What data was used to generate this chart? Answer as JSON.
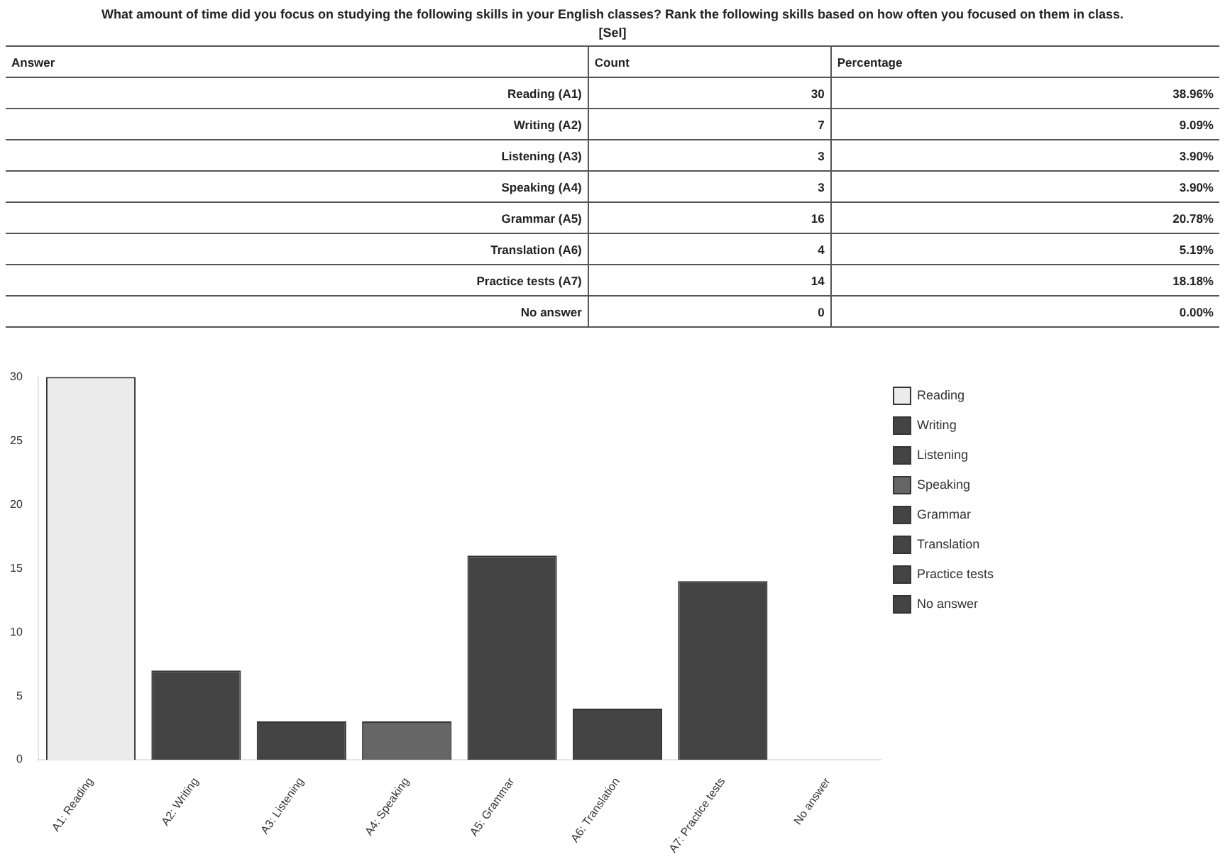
{
  "chart_data": {
    "type": "bar",
    "title": "What amount of time did you focus on studying the following skills in your English classes? Rank the following skills based on how often you focused on them in class.",
    "subtitle": "[Sel]",
    "categories": [
      "A1: Reading",
      "A2: Writing",
      "A3: Listening",
      "A4: Speaking",
      "A5: Grammar",
      "A6: Translation",
      "A7: Practice tests",
      "No answer"
    ],
    "series": [
      {
        "name": "Reading",
        "color": "#ebebeb",
        "values": [
          30,
          null,
          null,
          null,
          null,
          null,
          null,
          null
        ]
      },
      {
        "name": "Writing",
        "color": "#444444",
        "values": [
          null,
          7,
          null,
          null,
          null,
          null,
          null,
          null
        ]
      },
      {
        "name": "Listening",
        "color": "#444444",
        "values": [
          null,
          null,
          3,
          null,
          null,
          null,
          null,
          null
        ]
      },
      {
        "name": "Speaking",
        "color": "#666666",
        "values": [
          null,
          null,
          null,
          3,
          null,
          null,
          null,
          null
        ]
      },
      {
        "name": "Grammar",
        "color": "#444444",
        "values": [
          null,
          null,
          null,
          null,
          16,
          null,
          null,
          null
        ]
      },
      {
        "name": "Translation",
        "color": "#444444",
        "values": [
          null,
          null,
          null,
          null,
          null,
          4,
          null,
          null
        ]
      },
      {
        "name": "Practice tests",
        "color": "#444444",
        "values": [
          null,
          null,
          null,
          null,
          null,
          null,
          14,
          null
        ]
      },
      {
        "name": "No answer",
        "color": "#444444",
        "values": [
          null,
          null,
          null,
          null,
          null,
          null,
          null,
          0
        ]
      }
    ],
    "ylim": [
      0,
      30
    ],
    "yticks": [
      0,
      5,
      10,
      15,
      20,
      25,
      30
    ],
    "legend": "top right",
    "annotations": [
      "Answer",
      "Count",
      "Percentage",
      "Reading (A1)",
      "Writing (A2)",
      "Listening (A3)",
      "Speaking (A4)",
      "Grammar (A5)",
      "Translation (A6)",
      "Practice tests (A7)",
      "No answer",
      "30",
      "7",
      "3",
      "3",
      "16",
      "4",
      "14",
      "0",
      "38.96%",
      "9.09%",
      "3.90%",
      "3.90%",
      "20.78%",
      "5.19%",
      "18.18%",
      "0.00%"
    ]
  }
}
